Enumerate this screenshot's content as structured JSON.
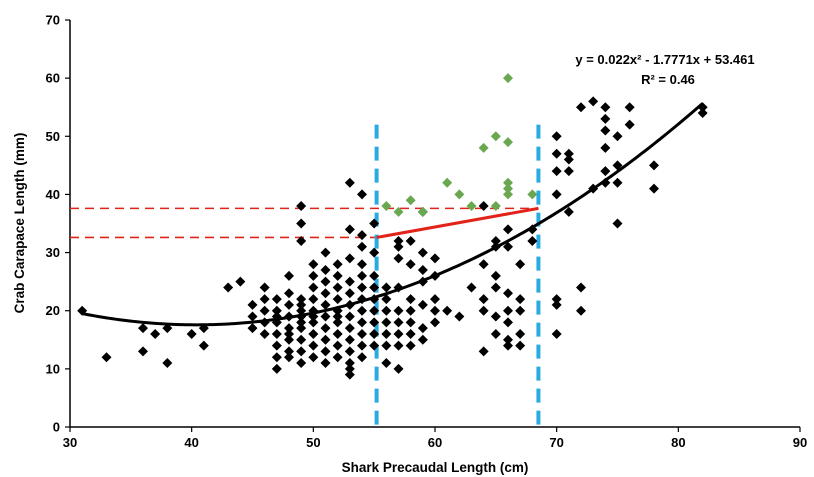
{
  "chart_data": {
    "type": "scatter",
    "xlabel": "Shark Precaudal Length (cm)",
    "ylabel": "Crab Carapace Length (mm)",
    "xlim": [
      30,
      90
    ],
    "ylim": [
      0,
      70
    ],
    "x_ticks": [
      "30",
      "40",
      "50",
      "60",
      "70",
      "80",
      "90"
    ],
    "y_ticks": [
      "0",
      "10",
      "20",
      "30",
      "40",
      "50",
      "60",
      "70"
    ],
    "grid": false,
    "annotation": {
      "equation": "y = 0.022x² - 1.7771x + 53.461",
      "r_squared": "R² = 0.46"
    },
    "fit": {
      "a": 0.022,
      "b": -1.7771,
      "c": 53.461,
      "x_range": [
        31,
        82
      ],
      "color": "#000000"
    },
    "vertical_lines": [
      55.2,
      68.5
    ],
    "vertical_line_color": "#29abe2",
    "horizontal_lines": [
      {
        "y": 32.6,
        "x_range": [
          30,
          55.2
        ]
      },
      {
        "y": 37.6,
        "x_range": [
          30,
          68.5
        ]
      }
    ],
    "red_segment": {
      "x": [
        55.2,
        68.5
      ],
      "y": [
        32.6,
        37.6
      ]
    },
    "red_color": "#e2231a",
    "series": [
      {
        "color": "#000000",
        "marker": "diamond",
        "points": [
          [
            31,
            20
          ],
          [
            33,
            12
          ],
          [
            36,
            13
          ],
          [
            36,
            17
          ],
          [
            37,
            16
          ],
          [
            38,
            11
          ],
          [
            38,
            17
          ],
          [
            40,
            16
          ],
          [
            41,
            14
          ],
          [
            41,
            17
          ],
          [
            43,
            24
          ],
          [
            44,
            25
          ],
          [
            45,
            21
          ],
          [
            45,
            19
          ],
          [
            45,
            17
          ],
          [
            46,
            22
          ],
          [
            46,
            20
          ],
          [
            46,
            18
          ],
          [
            46,
            16
          ],
          [
            46,
            24
          ],
          [
            47,
            12
          ],
          [
            47,
            14
          ],
          [
            47,
            16
          ],
          [
            47,
            18
          ],
          [
            47,
            20
          ],
          [
            47,
            22
          ],
          [
            47,
            19
          ],
          [
            47,
            10
          ],
          [
            48,
            13
          ],
          [
            48,
            15
          ],
          [
            48,
            17
          ],
          [
            48,
            19
          ],
          [
            48,
            21
          ],
          [
            48,
            23
          ],
          [
            48,
            26
          ],
          [
            48,
            12
          ],
          [
            48,
            16
          ],
          [
            49,
            11
          ],
          [
            49,
            13
          ],
          [
            49,
            15
          ],
          [
            49,
            17
          ],
          [
            49,
            18
          ],
          [
            49,
            19
          ],
          [
            49,
            20
          ],
          [
            49,
            21
          ],
          [
            49,
            22
          ],
          [
            49,
            32
          ],
          [
            49,
            35
          ],
          [
            49,
            38
          ],
          [
            50,
            14
          ],
          [
            50,
            16
          ],
          [
            50,
            18
          ],
          [
            50,
            20
          ],
          [
            50,
            22
          ],
          [
            50,
            24
          ],
          [
            50,
            26
          ],
          [
            50,
            28
          ],
          [
            50,
            12
          ],
          [
            50,
            19
          ],
          [
            51,
            13
          ],
          [
            51,
            15
          ],
          [
            51,
            17
          ],
          [
            51,
            19
          ],
          [
            51,
            21
          ],
          [
            51,
            23
          ],
          [
            51,
            25
          ],
          [
            51,
            27
          ],
          [
            51,
            11
          ],
          [
            51,
            30
          ],
          [
            52,
            12
          ],
          [
            52,
            14
          ],
          [
            52,
            16
          ],
          [
            52,
            18
          ],
          [
            52,
            20
          ],
          [
            52,
            22
          ],
          [
            52,
            24
          ],
          [
            52,
            26
          ],
          [
            52,
            28
          ],
          [
            52,
            19
          ],
          [
            53,
            9
          ],
          [
            53,
            10
          ],
          [
            53,
            11
          ],
          [
            53,
            13
          ],
          [
            53,
            15
          ],
          [
            53,
            17
          ],
          [
            53,
            19
          ],
          [
            53,
            21
          ],
          [
            53,
            23
          ],
          [
            53,
            25
          ],
          [
            53,
            29
          ],
          [
            53,
            34
          ],
          [
            53,
            42
          ],
          [
            54,
            12
          ],
          [
            54,
            14
          ],
          [
            54,
            16
          ],
          [
            54,
            18
          ],
          [
            54,
            20
          ],
          [
            54,
            22
          ],
          [
            54,
            24
          ],
          [
            54,
            26
          ],
          [
            54,
            28
          ],
          [
            54,
            31
          ],
          [
            54,
            33
          ],
          [
            54,
            40
          ],
          [
            55,
            14
          ],
          [
            55,
            16
          ],
          [
            55,
            18
          ],
          [
            55,
            20
          ],
          [
            55,
            22
          ],
          [
            55,
            24
          ],
          [
            55,
            26
          ],
          [
            55,
            30
          ],
          [
            55,
            35
          ],
          [
            56,
            11
          ],
          [
            56,
            14
          ],
          [
            56,
            16
          ],
          [
            56,
            18
          ],
          [
            56,
            20
          ],
          [
            56,
            22
          ],
          [
            56,
            24
          ],
          [
            57,
            10
          ],
          [
            57,
            14
          ],
          [
            57,
            16
          ],
          [
            57,
            18
          ],
          [
            57,
            20
          ],
          [
            57,
            24
          ],
          [
            57,
            29
          ],
          [
            57,
            31
          ],
          [
            57,
            32
          ],
          [
            58,
            14
          ],
          [
            58,
            16
          ],
          [
            58,
            18
          ],
          [
            58,
            20
          ],
          [
            58,
            22
          ],
          [
            58,
            28
          ],
          [
            58,
            32
          ],
          [
            59,
            15
          ],
          [
            59,
            17
          ],
          [
            59,
            21
          ],
          [
            59,
            25
          ],
          [
            59,
            27
          ],
          [
            59,
            30
          ],
          [
            59,
            37
          ],
          [
            60,
            18
          ],
          [
            60,
            20
          ],
          [
            60,
            22
          ],
          [
            60,
            26
          ],
          [
            60,
            29
          ],
          [
            61,
            20
          ],
          [
            62,
            19
          ],
          [
            63,
            24
          ],
          [
            64,
            13
          ],
          [
            64,
            20
          ],
          [
            64,
            22
          ],
          [
            64,
            28
          ],
          [
            64,
            38
          ],
          [
            65,
            16
          ],
          [
            65,
            19
          ],
          [
            65,
            24
          ],
          [
            65,
            26
          ],
          [
            65,
            31
          ],
          [
            65,
            32
          ],
          [
            66,
            14
          ],
          [
            66,
            15
          ],
          [
            66,
            18
          ],
          [
            66,
            20
          ],
          [
            66,
            23
          ],
          [
            66,
            31
          ],
          [
            66,
            34
          ],
          [
            67,
            14
          ],
          [
            67,
            16
          ],
          [
            67,
            20
          ],
          [
            67,
            22
          ],
          [
            67,
            28
          ],
          [
            68,
            32
          ],
          [
            68,
            34
          ],
          [
            70,
            16
          ],
          [
            70,
            21
          ],
          [
            70,
            22
          ],
          [
            70,
            40
          ],
          [
            70,
            44
          ],
          [
            70,
            47
          ],
          [
            70,
            50
          ],
          [
            71,
            37
          ],
          [
            71,
            44
          ],
          [
            71,
            46
          ],
          [
            71,
            47
          ],
          [
            72,
            20
          ],
          [
            72,
            24
          ],
          [
            72,
            55
          ],
          [
            73,
            41
          ],
          [
            73,
            56
          ],
          [
            74,
            42
          ],
          [
            74,
            44
          ],
          [
            74,
            48
          ],
          [
            74,
            51
          ],
          [
            74,
            53
          ],
          [
            74,
            55
          ],
          [
            75,
            35
          ],
          [
            75,
            42
          ],
          [
            75,
            45
          ],
          [
            75,
            50
          ],
          [
            76,
            52
          ],
          [
            76,
            55
          ],
          [
            78,
            41
          ],
          [
            78,
            45
          ],
          [
            82,
            54
          ],
          [
            82,
            55
          ]
        ]
      },
      {
        "color": "#6aa84f",
        "marker": "diamond",
        "points": [
          [
            56,
            38
          ],
          [
            57,
            37
          ],
          [
            58,
            39
          ],
          [
            59,
            37
          ],
          [
            61,
            42
          ],
          [
            62,
            40
          ],
          [
            63,
            38
          ],
          [
            64,
            48
          ],
          [
            65,
            38
          ],
          [
            65,
            50
          ],
          [
            66,
            40
          ],
          [
            66,
            41
          ],
          [
            66,
            42
          ],
          [
            66,
            49
          ],
          [
            66,
            60
          ],
          [
            68,
            40
          ]
        ]
      }
    ]
  }
}
